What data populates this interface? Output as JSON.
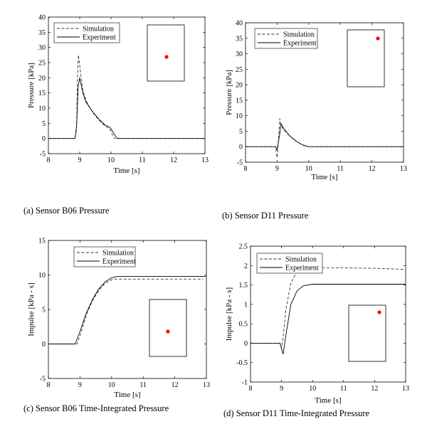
{
  "chart_data": [
    {
      "id": "a",
      "type": "line",
      "caption": "(a) Sensor B06 Pressure",
      "xlabel": "Time [s]",
      "ylabel": "Pressure [kPa]",
      "xlim": [
        8,
        13
      ],
      "ylim": [
        -5,
        40
      ],
      "xticks": [
        8,
        9,
        10,
        11,
        12,
        13
      ],
      "yticks": [
        -5,
        0,
        5,
        10,
        15,
        20,
        25,
        30,
        35,
        40
      ],
      "grid": false,
      "legend_position": "top-left",
      "inset_marker_color": "#ff0000",
      "series": [
        {
          "name": "Simulation",
          "style": "dashed",
          "x": [
            8.0,
            8.85,
            8.9,
            8.93,
            8.96,
            9.0,
            9.1,
            9.2,
            9.4,
            9.6,
            9.8,
            9.95,
            10.05,
            10.1,
            13.0
          ],
          "y": [
            0,
            0,
            3,
            20,
            27.5,
            24,
            16,
            12.5,
            8.8,
            6.2,
            4.2,
            3.3,
            1.2,
            0,
            0
          ]
        },
        {
          "name": "Experiment",
          "style": "solid",
          "x": [
            8.0,
            8.85,
            8.9,
            8.95,
            9.0,
            9.1,
            9.2,
            9.4,
            9.6,
            9.8,
            9.95,
            10.0,
            10.1,
            10.2,
            13.0
          ],
          "y": [
            0,
            0,
            4,
            17,
            20,
            15,
            12,
            9,
            6.5,
            4.5,
            3.8,
            3.2,
            1.5,
            0,
            0
          ]
        }
      ]
    },
    {
      "id": "b",
      "type": "line",
      "caption": "(b) Sensor D11 Pressure",
      "xlabel": "Time [s]",
      "ylabel": "Pressure [kPa]",
      "xlim": [
        8,
        13
      ],
      "ylim": [
        -5,
        40
      ],
      "xticks": [
        8,
        9,
        10,
        11,
        12,
        13
      ],
      "yticks": [
        -5,
        0,
        5,
        10,
        15,
        20,
        25,
        30,
        35,
        40
      ],
      "grid": false,
      "legend_position": "top-right",
      "inset_marker_color": "#ff0000",
      "series": [
        {
          "name": "Simulation",
          "style": "dashed",
          "x": [
            8.0,
            8.95,
            9.0,
            9.05,
            9.08,
            9.12,
            9.2,
            9.4,
            9.6,
            9.8,
            9.9,
            10.0,
            13.0
          ],
          "y": [
            0,
            0,
            -3.5,
            3,
            9,
            7,
            5.5,
            3.5,
            1.8,
            0.6,
            0.2,
            0,
            0
          ]
        },
        {
          "name": "Experiment",
          "style": "solid",
          "x": [
            8.0,
            8.95,
            9.0,
            9.08,
            9.12,
            9.2,
            9.4,
            9.6,
            9.8,
            10.0,
            13.0
          ],
          "y": [
            0,
            0,
            -1,
            4,
            7.5,
            6,
            3.5,
            1.8,
            0.6,
            0,
            0
          ]
        }
      ]
    },
    {
      "id": "c",
      "type": "line",
      "caption": "(c) Sensor B06 Time-Integrated Pressure",
      "xlabel": "Time [s]",
      "ylabel": "Impulse [kPa - s]",
      "xlim": [
        8,
        13
      ],
      "ylim": [
        -5,
        15
      ],
      "xticks": [
        8,
        9,
        10,
        11,
        12,
        13
      ],
      "yticks": [
        -5,
        0,
        5,
        10,
        15
      ],
      "grid": false,
      "legend_position": "top-right",
      "inset_marker_color": "#ff0000",
      "series": [
        {
          "name": "Simulation",
          "style": "dashed",
          "x": [
            8.0,
            8.9,
            9.0,
            9.2,
            9.4,
            9.6,
            9.8,
            10.0,
            10.1,
            12.9
          ],
          "y": [
            0,
            0,
            1.2,
            4.2,
            6.3,
            7.8,
            8.8,
            9.3,
            9.4,
            9.4
          ]
        },
        {
          "name": "Experiment",
          "style": "solid",
          "x": [
            8.0,
            8.85,
            9.0,
            9.2,
            9.4,
            9.6,
            9.8,
            10.0,
            10.2,
            13.0
          ],
          "y": [
            0,
            0,
            1.8,
            4.5,
            6.5,
            8.0,
            9.0,
            9.6,
            9.8,
            9.8
          ]
        }
      ]
    },
    {
      "id": "d",
      "type": "line",
      "caption": "(d) Sensor D11 Time-Integrated Pressure",
      "xlabel": "Time [s]",
      "ylabel": "Impulse [kPa - s]",
      "xlim": [
        8,
        13
      ],
      "ylim": [
        -1,
        2.5
      ],
      "xticks": [
        8,
        9,
        10,
        11,
        12,
        13
      ],
      "yticks": [
        -1,
        -0.5,
        0,
        0.5,
        1,
        1.5,
        2,
        2.5
      ],
      "grid": false,
      "legend_position": "top-left",
      "inset_marker_color": "#ff0000",
      "series": [
        {
          "name": "Simulation",
          "style": "dashed",
          "x": [
            8.0,
            8.95,
            9.0,
            9.05,
            9.15,
            9.3,
            9.5,
            9.7,
            10.0,
            11.0,
            12.0,
            13.0
          ],
          "y": [
            0,
            0,
            -0.12,
            0.15,
            0.9,
            1.55,
            1.85,
            1.93,
            1.95,
            1.94,
            1.93,
            1.9
          ]
        },
        {
          "name": "Experiment",
          "style": "solid",
          "x": [
            8.0,
            8.95,
            9.05,
            9.15,
            9.3,
            9.5,
            9.7,
            10.0,
            11.0,
            13.0
          ],
          "y": [
            0,
            0,
            -0.28,
            0.25,
            1.0,
            1.35,
            1.48,
            1.52,
            1.52,
            1.52
          ]
        }
      ]
    }
  ]
}
